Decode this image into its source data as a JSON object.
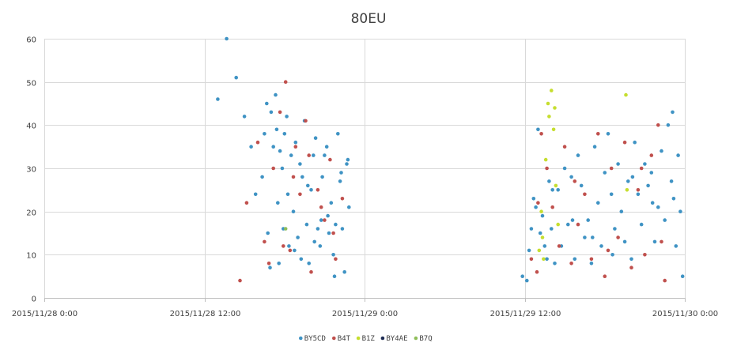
{
  "chart_data": {
    "type": "scatter",
    "title": "80EU",
    "xlabel": "",
    "ylabel": "",
    "x_type": "datetime",
    "xlim": [
      "2015-11-28T00:00",
      "2015-11-30T00:00"
    ],
    "ylim": [
      0,
      60
    ],
    "x_ticks": [
      "2015-11-28T00:00",
      "2015-11-28T12:00",
      "2015-11-29T00:00",
      "2015-11-29T12:00",
      "2015-11-30T00:00"
    ],
    "x_tick_labels": [
      "2015/11/28 0:00",
      "2015/11/28 12:00",
      "2015/11/29 0:00",
      "2015/11/29 12:00",
      "2015/11/30 0:00"
    ],
    "y_ticks": [
      0,
      10,
      20,
      30,
      40,
      50,
      60
    ],
    "y_tick_labels": [
      "0",
      "10",
      "20",
      "30",
      "40",
      "50",
      "60"
    ],
    "grid": "vertical-and-horizontal",
    "legend_position": "bottom",
    "series": [
      {
        "name": "BY5CD",
        "color": "#3f93c4",
        "x": [
          "2015-11-28T13:00",
          "2015-11-28T13:40",
          "2015-11-28T14:23",
          "2015-11-28T15:00",
          "2015-11-28T15:30",
          "2015-11-28T15:50",
          "2015-11-28T16:20",
          "2015-11-28T16:30",
          "2015-11-28T16:40",
          "2015-11-28T16:45",
          "2015-11-28T17:00",
          "2015-11-28T17:10",
          "2015-11-28T17:20",
          "2015-11-28T17:30",
          "2015-11-28T17:40",
          "2015-11-28T17:50",
          "2015-11-28T17:55",
          "2015-11-28T18:00",
          "2015-11-28T18:10",
          "2015-11-28T18:20",
          "2015-11-28T18:30",
          "2015-11-28T18:40",
          "2015-11-28T18:50",
          "2015-11-28T19:00",
          "2015-11-28T19:10",
          "2015-11-28T19:20",
          "2015-11-28T19:30",
          "2015-11-28T19:40",
          "2015-11-28T19:50",
          "2015-11-28T20:00",
          "2015-11-28T20:10",
          "2015-11-28T20:20",
          "2015-11-28T20:30",
          "2015-11-28T20:40",
          "2015-11-28T20:50",
          "2015-11-28T21:00",
          "2015-11-28T21:10",
          "2015-11-28T21:20",
          "2015-11-28T21:30",
          "2015-11-28T21:40",
          "2015-11-28T21:50",
          "2015-11-28T22:00",
          "2015-11-28T22:10",
          "2015-11-28T22:20",
          "2015-11-28T22:30",
          "2015-11-28T22:40",
          "2015-11-28T22:50",
          "2015-11-28T17:25",
          "2015-11-28T18:15",
          "2015-11-28T19:15",
          "2015-11-28T20:15",
          "2015-11-28T21:15",
          "2015-11-28T22:15",
          "2015-11-28T18:45",
          "2015-11-28T19:45",
          "2015-11-28T20:45",
          "2015-11-28T21:45",
          "2015-11-28T22:45",
          "2015-11-28T16:55",
          "2015-11-28T17:35",
          "2015-11-29T11:50",
          "2015-11-29T12:10",
          "2015-11-29T12:20",
          "2015-11-29T12:30",
          "2015-11-29T12:40",
          "2015-11-29T12:50",
          "2015-11-29T13:00",
          "2015-11-29T13:10",
          "2015-11-29T13:20",
          "2015-11-29T13:30",
          "2015-11-29T13:40",
          "2015-11-29T13:50",
          "2015-11-29T14:00",
          "2015-11-29T14:15",
          "2015-11-29T14:30",
          "2015-11-29T14:45",
          "2015-11-29T15:00",
          "2015-11-29T15:15",
          "2015-11-29T15:30",
          "2015-11-29T15:45",
          "2015-11-29T16:00",
          "2015-11-29T16:15",
          "2015-11-29T16:30",
          "2015-11-29T16:45",
          "2015-11-29T17:00",
          "2015-11-29T17:15",
          "2015-11-29T17:30",
          "2015-11-29T17:45",
          "2015-11-29T18:00",
          "2015-11-29T18:15",
          "2015-11-29T18:30",
          "2015-11-29T18:45",
          "2015-11-29T19:00",
          "2015-11-29T19:15",
          "2015-11-29T19:30",
          "2015-11-29T19:45",
          "2015-11-29T20:00",
          "2015-11-29T20:15",
          "2015-11-29T20:30",
          "2015-11-29T20:45",
          "2015-11-29T21:00",
          "2015-11-29T21:15",
          "2015-11-29T21:30",
          "2015-11-29T21:45",
          "2015-11-29T22:00",
          "2015-11-29T22:15",
          "2015-11-29T22:30",
          "2015-11-29T22:45",
          "2015-11-29T23:00",
          "2015-11-29T23:10",
          "2015-11-29T23:20",
          "2015-11-29T23:30",
          "2015-11-29T23:40",
          "2015-11-29T23:50",
          "2015-11-29T14:05",
          "2015-11-29T15:35",
          "2015-11-29T17:05",
          "2015-11-29T18:35",
          "2015-11-29T20:05",
          "2015-11-29T21:35",
          "2015-11-29T23:05"
        ],
        "y": [
          46,
          60,
          51,
          42,
          35,
          24,
          28,
          38,
          45,
          15,
          43,
          35,
          47,
          22,
          34,
          30,
          16,
          38,
          42,
          12,
          33,
          20,
          36,
          14,
          31,
          28,
          41,
          17,
          8,
          25,
          33,
          37,
          16,
          12,
          28,
          33,
          35,
          15,
          22,
          10,
          17,
          38,
          27,
          16,
          6,
          31,
          21,
          39,
          24,
          9,
          13,
          19,
          29,
          11,
          26,
          18,
          5,
          32,
          7,
          8,
          5,
          4,
          11,
          16,
          23,
          21,
          39,
          15,
          19,
          12,
          9,
          27,
          16,
          8,
          25,
          12,
          30,
          17,
          28,
          9,
          33,
          26,
          14,
          18,
          8,
          35,
          22,
          12,
          29,
          38,
          24,
          16,
          31,
          20,
          13,
          27,
          9,
          36,
          24,
          17,
          31,
          26,
          29,
          13,
          21,
          34,
          18,
          40,
          27,
          23,
          12,
          33,
          20,
          5,
          25,
          18,
          14,
          10,
          28,
          22,
          43
        ]
      },
      {
        "name": "B4T",
        "color": "#c0504d",
        "x": [
          "2015-11-28T14:40",
          "2015-11-28T15:10",
          "2015-11-28T16:00",
          "2015-11-28T16:30",
          "2015-11-28T17:10",
          "2015-11-28T17:40",
          "2015-11-28T18:05",
          "2015-11-28T18:25",
          "2015-11-28T18:50",
          "2015-11-28T19:10",
          "2015-11-28T19:35",
          "2015-11-28T20:00",
          "2015-11-28T20:30",
          "2015-11-28T21:00",
          "2015-11-28T21:25",
          "2015-11-28T21:50",
          "2015-11-28T22:20",
          "2015-11-28T16:50",
          "2015-11-28T17:55",
          "2015-11-28T19:50",
          "2015-11-28T20:45",
          "2015-11-28T18:40",
          "2015-11-28T21:40",
          "2015-11-29T12:30",
          "2015-11-29T12:55",
          "2015-11-29T13:15",
          "2015-11-29T13:40",
          "2015-11-29T14:05",
          "2015-11-29T14:35",
          "2015-11-29T15:00",
          "2015-11-29T15:30",
          "2015-11-29T16:00",
          "2015-11-29T16:30",
          "2015-11-29T17:00",
          "2015-11-29T17:30",
          "2015-11-29T18:00",
          "2015-11-29T18:30",
          "2015-11-29T19:00",
          "2015-11-29T19:30",
          "2015-11-29T20:00",
          "2015-11-29T20:30",
          "2015-11-29T21:00",
          "2015-11-29T21:30",
          "2015-11-29T22:00",
          "2015-11-29T22:30",
          "2015-11-29T13:00",
          "2015-11-29T15:45",
          "2015-11-29T18:15",
          "2015-11-29T20:45",
          "2015-11-29T22:15"
        ],
        "y": [
          4,
          22,
          36,
          13,
          30,
          43,
          50,
          11,
          35,
          24,
          41,
          6,
          25,
          18,
          32,
          9,
          23,
          8,
          12,
          33,
          21,
          28,
          15,
          9,
          6,
          38,
          30,
          21,
          12,
          35,
          8,
          17,
          24,
          9,
          38,
          5,
          30,
          14,
          36,
          7,
          25,
          10,
          33,
          40,
          4,
          22,
          27,
          11,
          30,
          13
        ]
      },
      {
        "name": "B1Z",
        "color": "#c6de2f",
        "x": [
          "2015-11-29T13:05",
          "2015-11-29T13:20",
          "2015-11-29T13:35",
          "2015-11-29T13:50",
          "2015-11-29T14:00",
          "2015-11-29T14:10",
          "2015-11-29T14:20",
          "2015-11-29T14:30",
          "2015-11-29T13:15",
          "2015-11-29T13:45",
          "2015-11-29T14:15",
          "2015-11-29T19:35",
          "2015-11-29T19:40",
          "2015-11-29T13:25"
        ],
        "y": [
          11,
          14,
          32,
          42,
          48,
          39,
          26,
          17,
          20,
          45,
          44,
          47,
          25,
          9
        ]
      },
      {
        "name": "BY4AE",
        "color": "#1f2d55",
        "x": [],
        "y": []
      },
      {
        "name": "B7Q",
        "color": "#8fbe5a",
        "x": [
          "2015-11-28T18:05"
        ],
        "y": [
          16
        ]
      }
    ]
  }
}
